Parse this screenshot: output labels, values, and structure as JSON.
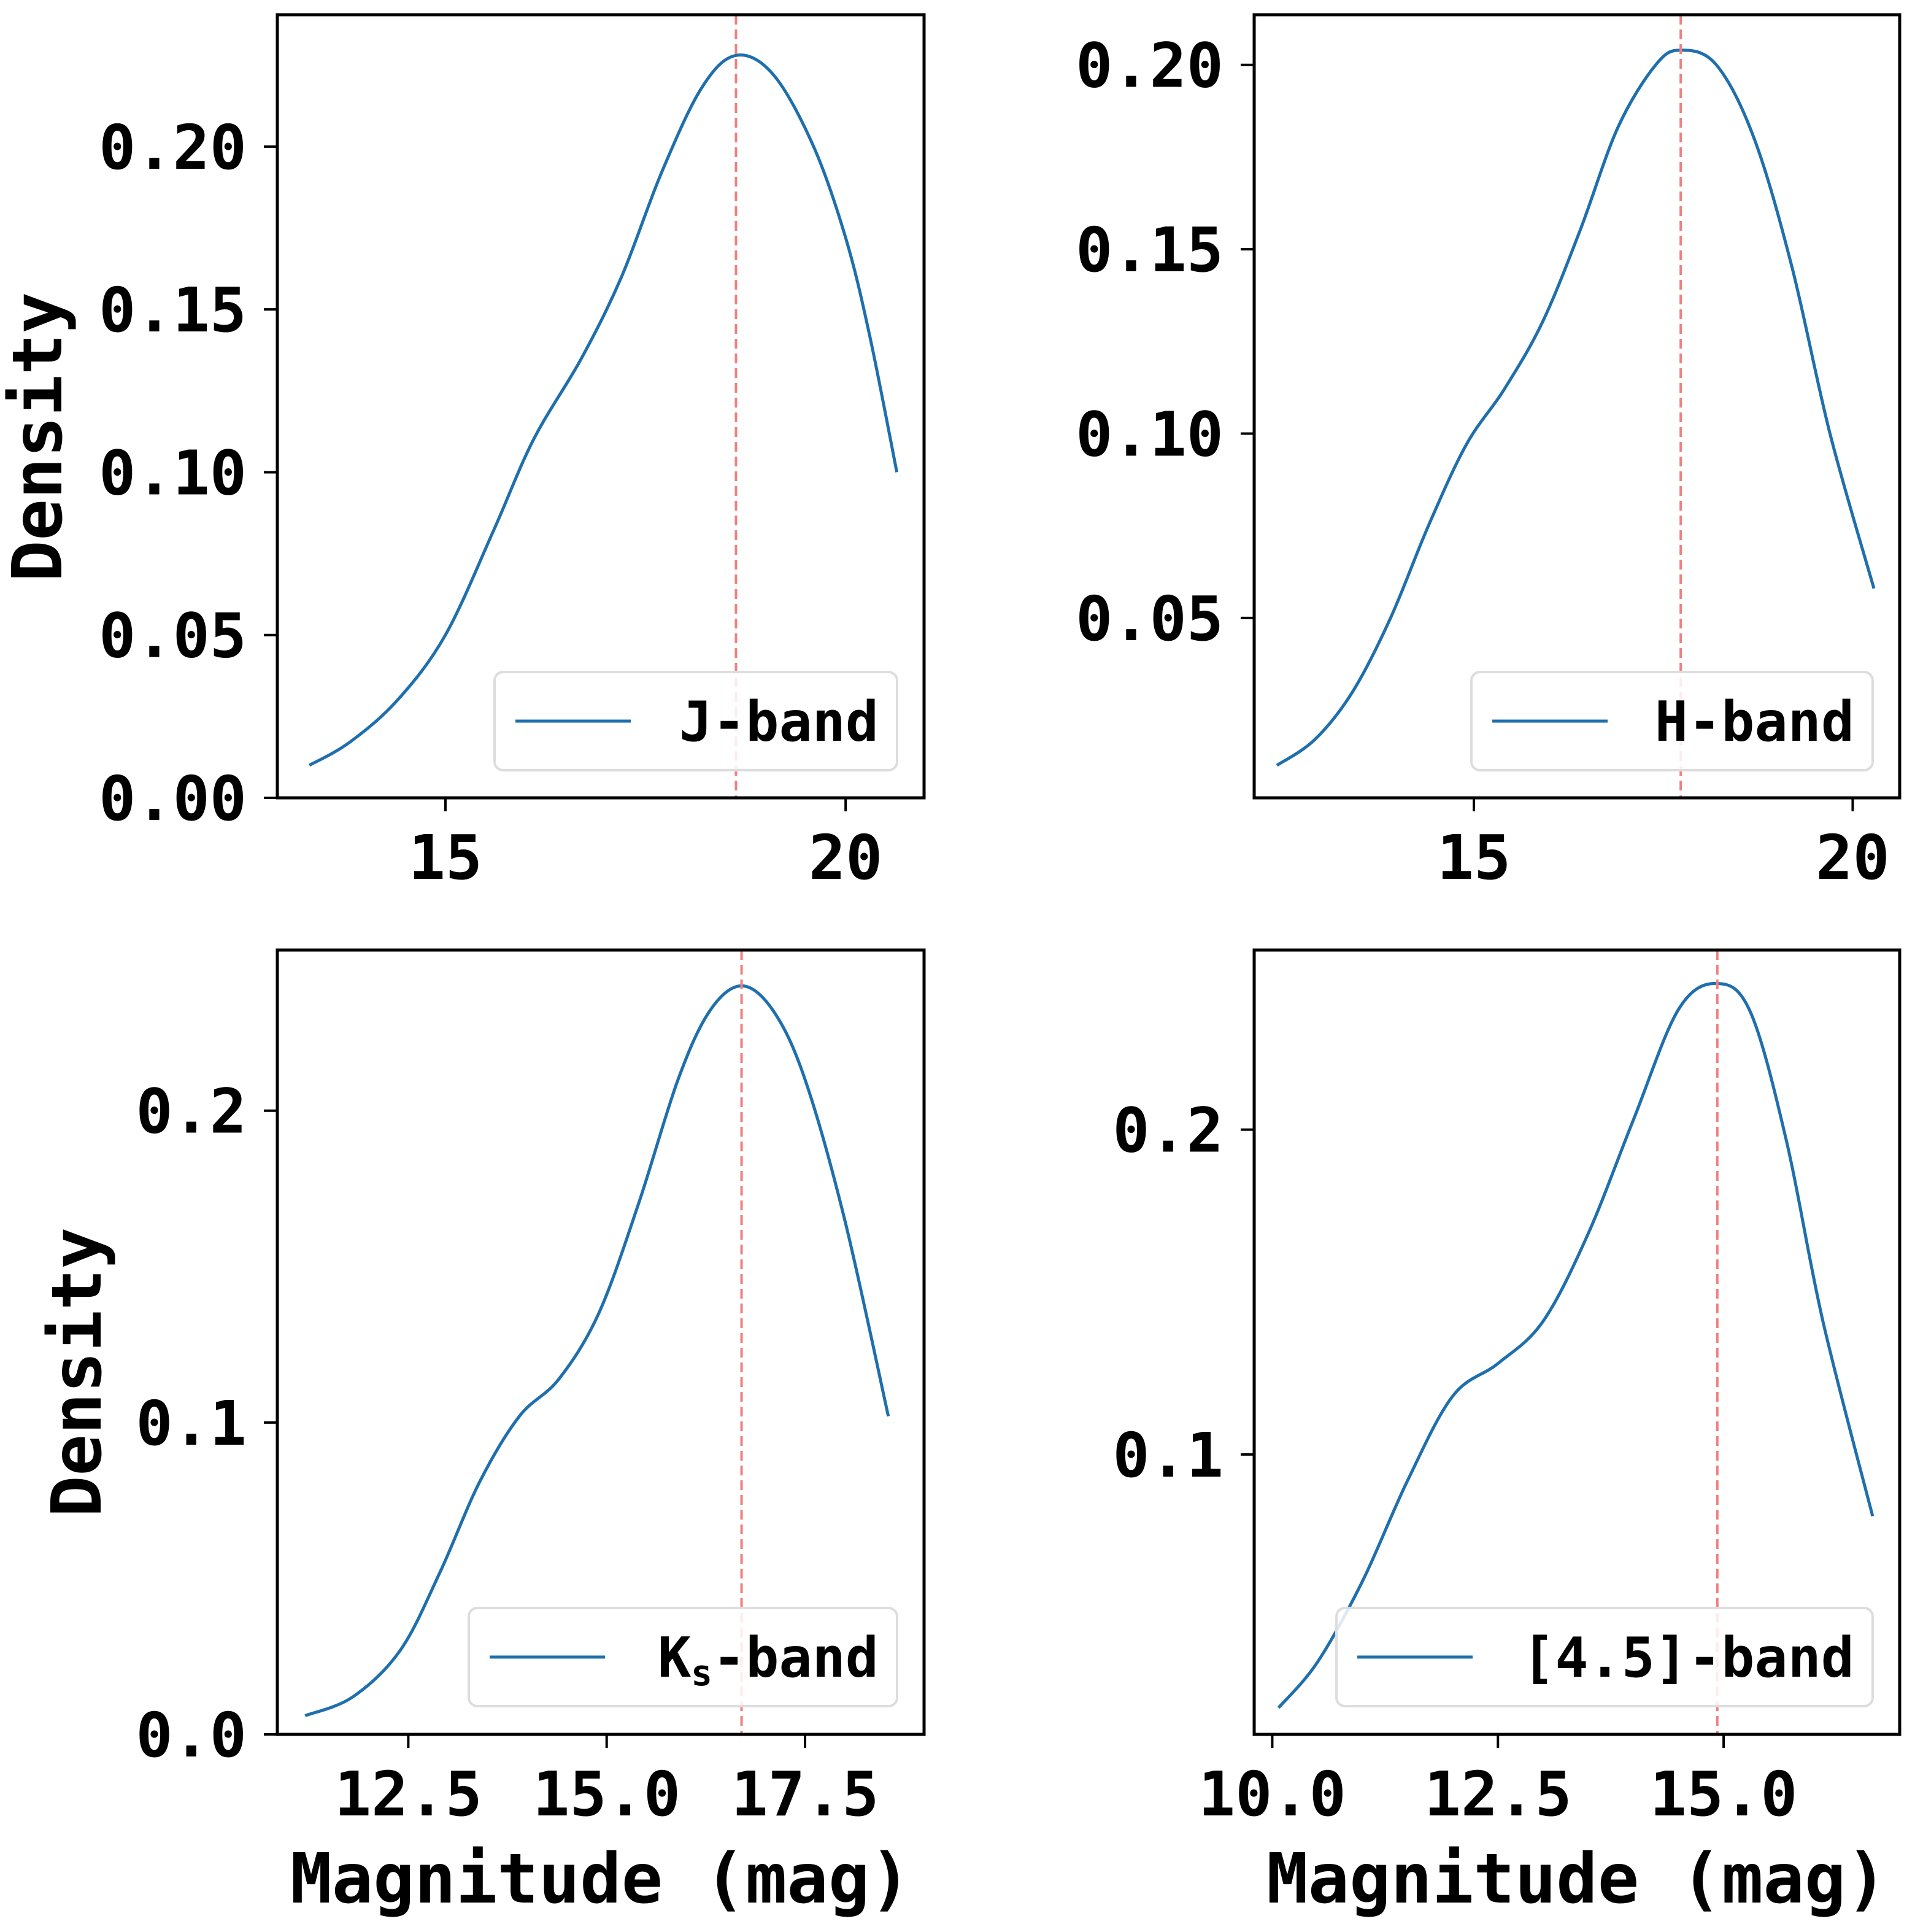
{
  "figure": {
    "ylabel": "Density",
    "xlabel": "Magnitude (mag)"
  },
  "colors": {
    "line": "#1f6fad",
    "peak": "#f08080",
    "frame": "#000000",
    "legend_border": "#dddddd"
  },
  "chart_data": [
    {
      "type": "line",
      "title": "",
      "legend": "J-band",
      "legend_loc": "lower-right",
      "xlabel": "",
      "ylabel": "Density",
      "xlim": [
        12.9,
        20.98
      ],
      "ylim": [
        0.0,
        0.2405
      ],
      "xticks": [
        15,
        20
      ],
      "xtick_labels": [
        "15",
        "20"
      ],
      "yticks": [
        0.0,
        0.05,
        0.1,
        0.15,
        0.2
      ],
      "ytick_labels": [
        "0.00",
        "0.05",
        "0.10",
        "0.15",
        "0.20"
      ],
      "peak_x": 18.63,
      "x": [
        13.3,
        13.8,
        14.4,
        15.0,
        15.6,
        16.1,
        16.7,
        17.2,
        17.7,
        18.2,
        18.63,
        19.1,
        19.6,
        20.0,
        20.3,
        20.64
      ],
      "y": [
        0.01,
        0.017,
        0.03,
        0.05,
        0.082,
        0.11,
        0.135,
        0.16,
        0.192,
        0.218,
        0.228,
        0.222,
        0.2,
        0.172,
        0.142,
        0.1
      ]
    },
    {
      "type": "line",
      "title": "",
      "legend": "H-band",
      "legend_loc": "lower-right",
      "xlabel": "",
      "ylabel": "",
      "xlim": [
        12.1,
        20.62
      ],
      "ylim": [
        0.0012,
        0.2136
      ],
      "xticks": [
        15,
        20
      ],
      "xtick_labels": [
        "15",
        "20"
      ],
      "yticks": [
        0.05,
        0.1,
        0.15,
        0.2
      ],
      "ytick_labels": [
        "0.05",
        "0.10",
        "0.15",
        "0.20"
      ],
      "peak_x": 17.73,
      "x": [
        12.4,
        12.9,
        13.4,
        13.9,
        14.4,
        14.9,
        15.4,
        15.9,
        16.4,
        16.9,
        17.4,
        17.73,
        18.2,
        18.7,
        19.2,
        19.7,
        20.28
      ],
      "y": [
        0.01,
        0.017,
        0.03,
        0.05,
        0.075,
        0.097,
        0.112,
        0.13,
        0.155,
        0.183,
        0.2,
        0.204,
        0.2,
        0.18,
        0.145,
        0.1,
        0.058
      ]
    },
    {
      "type": "line",
      "title": "",
      "legend": "K",
      "legend_sub": "s",
      "legend_tail": "-band",
      "legend_loc": "lower-right",
      "xlabel": "Magnitude (mag)",
      "ylabel": "Density",
      "xlim": [
        10.85,
        19.0
      ],
      "ylim": [
        0.0,
        0.2515
      ],
      "xticks": [
        12.5,
        15.0,
        17.5
      ],
      "xtick_labels": [
        "12.5",
        "15.0",
        "17.5"
      ],
      "yticks": [
        0.0,
        0.1,
        0.2
      ],
      "ytick_labels": [
        "0.0",
        "0.1",
        "0.2"
      ],
      "peak_x": 16.7,
      "x": [
        11.2,
        11.8,
        12.4,
        12.9,
        13.4,
        13.9,
        14.4,
        14.9,
        15.4,
        15.9,
        16.3,
        16.7,
        17.1,
        17.5,
        18.0,
        18.55
      ],
      "y": [
        0.006,
        0.012,
        0.027,
        0.052,
        0.081,
        0.102,
        0.114,
        0.135,
        0.17,
        0.21,
        0.232,
        0.24,
        0.232,
        0.21,
        0.165,
        0.102
      ]
    },
    {
      "type": "line",
      "title": "",
      "legend": "[4.5]-band",
      "legend_loc": "lower-right",
      "xlabel": "Magnitude (mag)",
      "ylabel": "",
      "xlim": [
        9.8,
        16.95
      ],
      "ylim": [
        0.0138,
        0.2553
      ],
      "xticks": [
        10.0,
        12.5,
        15.0
      ],
      "xtick_labels": [
        "10.0",
        "12.5",
        "15.0"
      ],
      "yticks": [
        0.1,
        0.2
      ],
      "ytick_labels": [
        "0.1",
        "0.2"
      ],
      "peak_x": 14.93,
      "x": [
        10.07,
        10.5,
        11.0,
        11.5,
        12.0,
        12.5,
        13.0,
        13.5,
        14.0,
        14.5,
        14.93,
        15.3,
        15.7,
        16.1,
        16.65
      ],
      "y": [
        0.022,
        0.036,
        0.061,
        0.092,
        0.118,
        0.128,
        0.141,
        0.168,
        0.203,
        0.237,
        0.245,
        0.236,
        0.196,
        0.141,
        0.081
      ]
    }
  ]
}
